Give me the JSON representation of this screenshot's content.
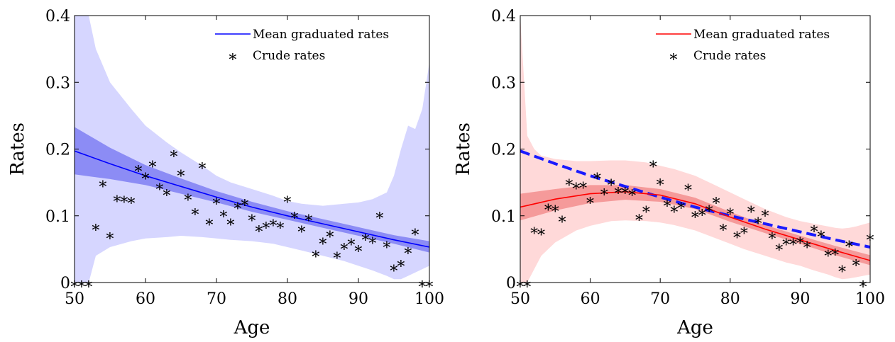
{
  "chart_data": [
    {
      "type": "line",
      "xlabel": "Age",
      "ylabel": "Rates",
      "xlim": [
        50,
        100
      ],
      "ylim": [
        0,
        0.4
      ],
      "xticks": [
        "50",
        "60",
        "70",
        "80",
        "90",
        "100"
      ],
      "yticks": [
        "0",
        "0.1",
        "0.2",
        "0.3",
        "0.4"
      ],
      "legend_position": "top-right",
      "legend": [
        {
          "label": "Mean graduated rates",
          "kind": "line"
        },
        {
          "label": "Crude rates",
          "kind": "marker"
        }
      ],
      "colors": {
        "line": "#0000ff",
        "band_outer": "#d6d6ff",
        "band_inner": "#8c8cf5"
      },
      "mean": {
        "x": [
          50,
          55,
          60,
          65,
          70,
          75,
          80,
          85,
          90,
          95,
          100
        ],
        "y": [
          0.197,
          0.178,
          0.16,
          0.144,
          0.128,
          0.113,
          0.1,
          0.088,
          0.076,
          0.064,
          0.053
        ]
      },
      "inner_band": {
        "x": [
          50,
          55,
          60,
          65,
          70,
          75,
          80,
          85,
          90,
          95,
          100
        ],
        "lower": [
          0.162,
          0.155,
          0.146,
          0.133,
          0.12,
          0.106,
          0.094,
          0.082,
          0.07,
          0.058,
          0.045
        ],
        "upper": [
          0.233,
          0.202,
          0.176,
          0.156,
          0.137,
          0.121,
          0.107,
          0.095,
          0.083,
          0.071,
          0.062
        ]
      },
      "outer_band": {
        "x": [
          50,
          51,
          52,
          53,
          55,
          58,
          60,
          63,
          65,
          68,
          70,
          72,
          75,
          78,
          80,
          82,
          85,
          88,
          90,
          92,
          94,
          95,
          96,
          97,
          98,
          99,
          100
        ],
        "lower": [
          0.0,
          0.0,
          0.0,
          0.04,
          0.053,
          0.062,
          0.066,
          0.068,
          0.07,
          0.068,
          0.066,
          0.064,
          0.062,
          0.058,
          0.053,
          0.048,
          0.04,
          0.032,
          0.025,
          0.018,
          0.01,
          0.005,
          0.005,
          0.01,
          0.015,
          0.02,
          0.025
        ],
        "upper": [
          0.4,
          0.4,
          0.4,
          0.35,
          0.3,
          0.26,
          0.235,
          0.21,
          0.195,
          0.175,
          0.16,
          0.15,
          0.14,
          0.13,
          0.122,
          0.118,
          0.115,
          0.118,
          0.12,
          0.125,
          0.135,
          0.16,
          0.2,
          0.235,
          0.23,
          0.26,
          0.33
        ]
      },
      "crude": {
        "x": [
          50,
          51,
          52,
          53,
          54,
          55,
          56,
          57,
          58,
          59,
          60,
          61,
          62,
          63,
          64,
          65,
          66,
          67,
          68,
          69,
          70,
          71,
          72,
          73,
          74,
          75,
          76,
          77,
          78,
          79,
          80,
          81,
          82,
          83,
          84,
          85,
          86,
          87,
          88,
          89,
          90,
          91,
          92,
          93,
          94,
          95,
          96,
          97,
          98,
          99,
          100
        ],
        "y": [
          0.0,
          0.0,
          0.0,
          0.085,
          0.15,
          0.072,
          0.128,
          0.127,
          0.125,
          0.173,
          0.162,
          0.18,
          0.146,
          0.137,
          0.195,
          0.166,
          0.13,
          0.108,
          0.177,
          0.093,
          0.124,
          0.105,
          0.093,
          0.117,
          0.122,
          0.099,
          0.083,
          0.088,
          0.092,
          0.088,
          0.127,
          0.103,
          0.082,
          0.099,
          0.045,
          0.064,
          0.075,
          0.043,
          0.056,
          0.063,
          0.053,
          0.07,
          0.065,
          0.103,
          0.059,
          0.024,
          0.031,
          0.05,
          0.078,
          0.0,
          0.0
        ]
      }
    },
    {
      "type": "line",
      "xlabel": "Age",
      "ylabel": "Rates",
      "xlim": [
        50,
        100
      ],
      "ylim": [
        0,
        0.4
      ],
      "xticks": [
        "50",
        "60",
        "70",
        "80",
        "90",
        "100"
      ],
      "yticks": [
        "0",
        "0.1",
        "0.2",
        "0.3",
        "0.4"
      ],
      "legend_position": "top-right",
      "legend": [
        {
          "label": "Mean graduated rates",
          "kind": "line"
        },
        {
          "label": "Crude rates",
          "kind": "marker"
        }
      ],
      "colors": {
        "line": "#ff0000",
        "band_outer": "#ffd9d9",
        "band_inner": "#f59a9a",
        "comparison": "#1a1aff"
      },
      "mean": {
        "x": [
          50,
          55,
          60,
          65,
          70,
          75,
          80,
          85,
          90,
          95,
          100
        ],
        "y": [
          0.113,
          0.125,
          0.133,
          0.136,
          0.131,
          0.118,
          0.098,
          0.08,
          0.064,
          0.048,
          0.033
        ]
      },
      "inner_band": {
        "x": [
          50,
          55,
          60,
          65,
          70,
          75,
          80,
          85,
          90,
          95,
          100
        ],
        "lower": [
          0.093,
          0.108,
          0.119,
          0.124,
          0.121,
          0.11,
          0.091,
          0.074,
          0.058,
          0.041,
          0.026
        ],
        "upper": [
          0.133,
          0.14,
          0.146,
          0.146,
          0.14,
          0.127,
          0.106,
          0.086,
          0.07,
          0.055,
          0.041
        ]
      },
      "outer_band": {
        "x": [
          50,
          51,
          52,
          53,
          55,
          58,
          60,
          63,
          65,
          68,
          70,
          72,
          75,
          78,
          80,
          82,
          85,
          88,
          90,
          92,
          94,
          95,
          96,
          97,
          98,
          99,
          100
        ],
        "lower": [
          0.0,
          0.0,
          0.02,
          0.04,
          0.06,
          0.078,
          0.085,
          0.092,
          0.093,
          0.092,
          0.09,
          0.086,
          0.078,
          0.066,
          0.058,
          0.05,
          0.04,
          0.03,
          0.025,
          0.018,
          0.012,
          0.008,
          0.005,
          0.006,
          0.008,
          0.01,
          0.012
        ],
        "upper": [
          0.4,
          0.22,
          0.2,
          0.19,
          0.185,
          0.182,
          0.182,
          0.183,
          0.183,
          0.18,
          0.175,
          0.17,
          0.16,
          0.145,
          0.135,
          0.125,
          0.11,
          0.098,
          0.092,
          0.088,
          0.084,
          0.082,
          0.081,
          0.082,
          0.084,
          0.087,
          0.09
        ]
      },
      "comparison_line": {
        "style": "dashed",
        "x": [
          50,
          55,
          60,
          65,
          70,
          75,
          80,
          85,
          90,
          95,
          100
        ],
        "y": [
          0.197,
          0.178,
          0.16,
          0.144,
          0.128,
          0.113,
          0.1,
          0.088,
          0.076,
          0.064,
          0.053
        ]
      },
      "crude": {
        "x": [
          50,
          51,
          52,
          53,
          54,
          55,
          56,
          57,
          58,
          59,
          60,
          61,
          62,
          63,
          64,
          65,
          66,
          67,
          68,
          69,
          70,
          71,
          72,
          73,
          74,
          75,
          76,
          77,
          78,
          79,
          80,
          81,
          82,
          83,
          84,
          85,
          86,
          87,
          88,
          89,
          90,
          91,
          92,
          93,
          94,
          95,
          96,
          97,
          98,
          99,
          100
        ],
        "y": [
          0.0,
          0.0,
          0.08,
          0.078,
          0.115,
          0.113,
          0.097,
          0.152,
          0.147,
          0.148,
          0.125,
          0.162,
          0.138,
          0.152,
          0.14,
          0.14,
          0.137,
          0.1,
          0.112,
          0.18,
          0.153,
          0.121,
          0.112,
          0.118,
          0.145,
          0.104,
          0.107,
          0.113,
          0.125,
          0.085,
          0.109,
          0.074,
          0.08,
          0.112,
          0.095,
          0.106,
          0.072,
          0.055,
          0.063,
          0.063,
          0.065,
          0.059,
          0.083,
          0.075,
          0.046,
          0.048,
          0.023,
          0.06,
          0.032,
          0.0,
          0.07
        ]
      }
    }
  ]
}
